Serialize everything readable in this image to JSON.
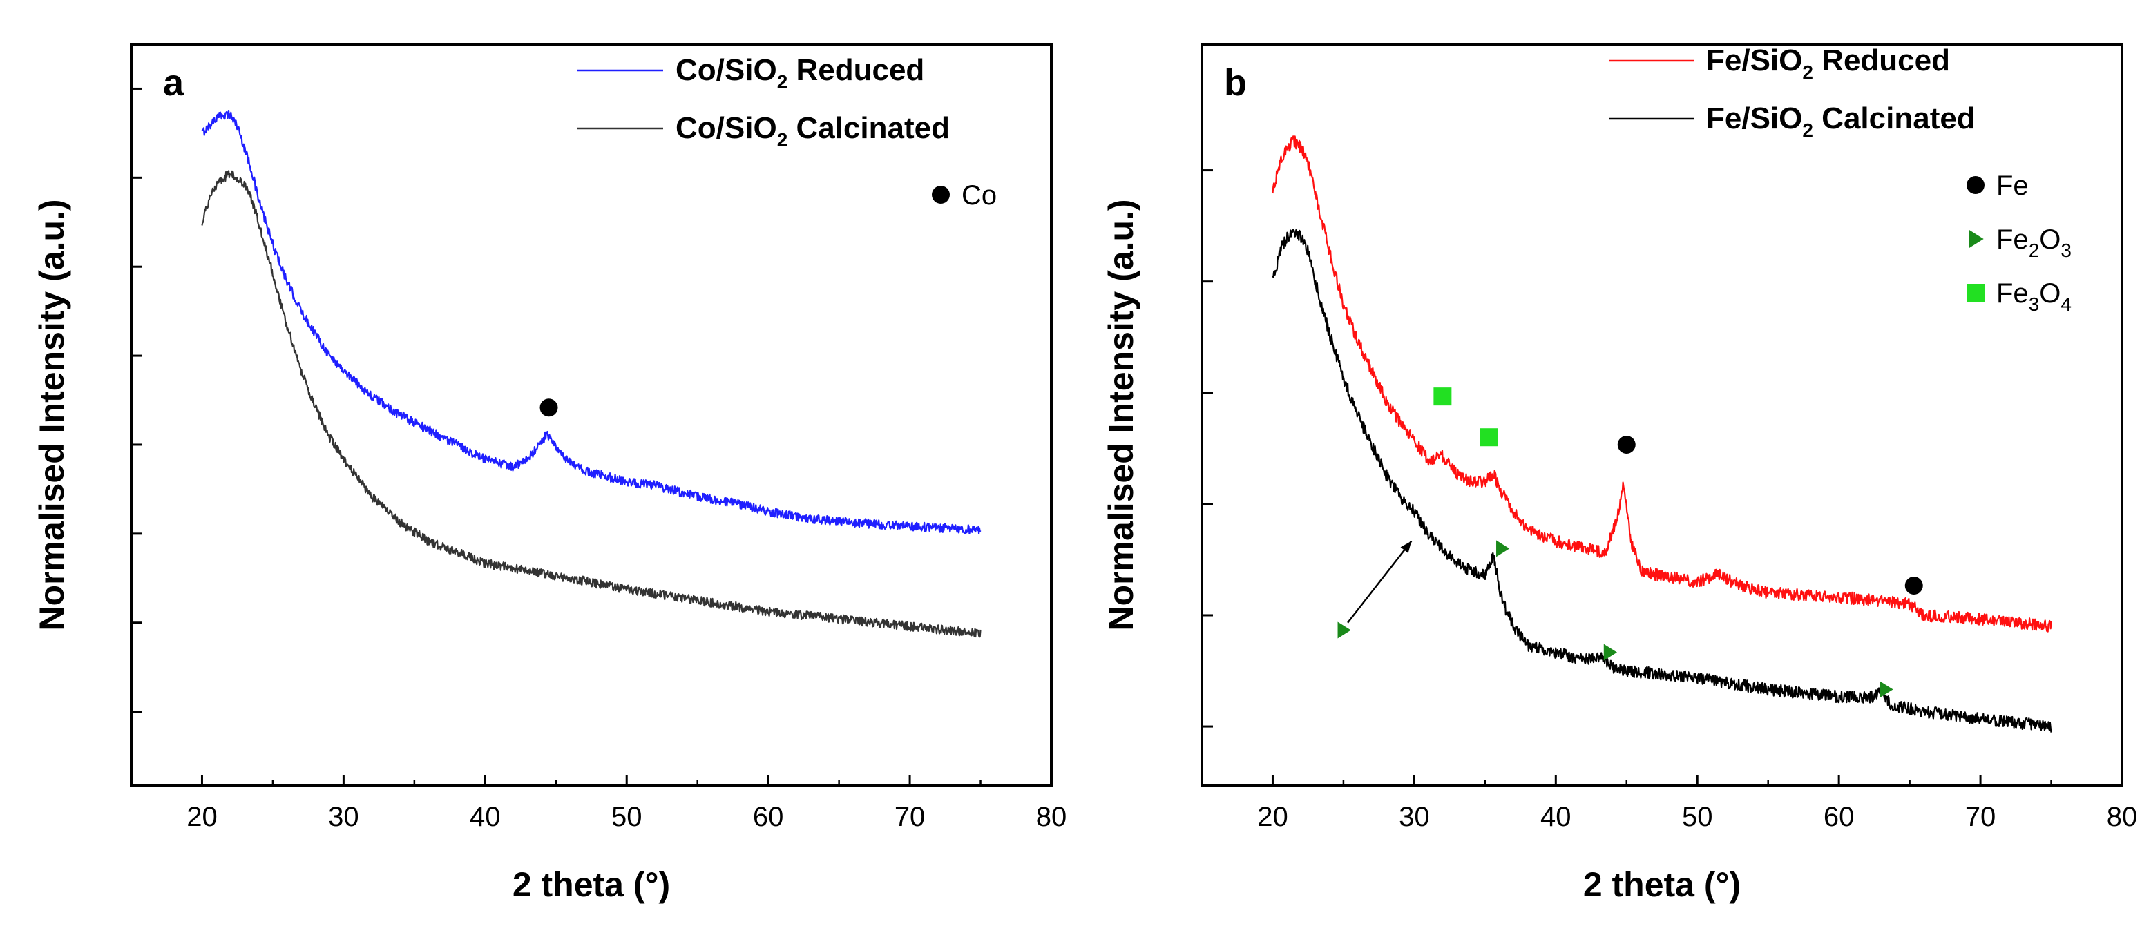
{
  "chart_data": [
    {
      "type": "line",
      "panel_label": "a",
      "xlabel": "2 theta (°)",
      "ylabel": "Normalised Intensity (a.u.)",
      "xlim": [
        15,
        80
      ],
      "ylim": [
        0,
        1
      ],
      "x_ticks": [
        20,
        30,
        40,
        50,
        60,
        70,
        80
      ],
      "y_ticks": [
        0.1,
        0.22,
        0.34,
        0.46,
        0.58,
        0.7,
        0.82,
        0.94
      ],
      "x_tick_labels": [
        "20",
        "30",
        "40",
        "50",
        "60",
        "70",
        "80"
      ],
      "y_tick_labels_visible": false,
      "series": [
        {
          "name": "Co/SiO₂ Reduced",
          "legend_main": "Co/SiO",
          "legend_sub": "2",
          "legend_rest": " Reduced",
          "color": "#1f1fff",
          "noise": 0.006,
          "x": [
            20,
            20.5,
            21.0,
            21.5,
            22.0,
            22.5,
            23.0,
            23.5,
            24.0,
            25.0,
            26.0,
            27.0,
            28.0,
            29.0,
            30.0,
            32.0,
            34.0,
            36.0,
            38.0,
            40.0,
            41.0,
            42.0,
            43.0,
            43.8,
            44.4,
            45.0,
            46.0,
            47.0,
            48.0,
            50.0,
            52.0,
            55.0,
            58.0,
            60.0,
            63.0,
            66.0,
            70.0,
            75.0
          ],
          "values": [
            0.88,
            0.89,
            0.9,
            0.905,
            0.905,
            0.89,
            0.86,
            0.83,
            0.79,
            0.73,
            0.68,
            0.64,
            0.61,
            0.58,
            0.56,
            0.525,
            0.5,
            0.48,
            0.46,
            0.44,
            0.435,
            0.43,
            0.44,
            0.46,
            0.475,
            0.455,
            0.435,
            0.425,
            0.42,
            0.41,
            0.405,
            0.39,
            0.38,
            0.37,
            0.36,
            0.355,
            0.35,
            0.345
          ]
        },
        {
          "name": "Co/SiO₂ Calcinated",
          "legend_main": "Co/SiO",
          "legend_sub": "2",
          "legend_rest": " Calcinated",
          "color": "#333333",
          "noise": 0.006,
          "x": [
            20,
            20.5,
            21.0,
            21.5,
            22.0,
            22.5,
            23.0,
            23.5,
            24.0,
            25.0,
            26.0,
            27.0,
            28.0,
            29.0,
            30.0,
            32.0,
            34.0,
            36.0,
            38.0,
            40.0,
            43.0,
            46.0,
            50.0,
            55.0,
            60.0,
            65.0,
            70.0,
            75.0
          ],
          "values": [
            0.76,
            0.79,
            0.81,
            0.82,
            0.825,
            0.82,
            0.81,
            0.79,
            0.76,
            0.69,
            0.62,
            0.56,
            0.51,
            0.47,
            0.44,
            0.39,
            0.355,
            0.33,
            0.315,
            0.3,
            0.29,
            0.28,
            0.265,
            0.25,
            0.235,
            0.225,
            0.215,
            0.205
          ]
        }
      ],
      "peak_markers": [
        {
          "phase": "Co",
          "shape": "circle",
          "color": "#000000",
          "x": 44.5,
          "y": 0.51
        }
      ],
      "marker_legend": [
        {
          "shape": "circle",
          "color": "#000000",
          "label": "Co",
          "sub": ""
        }
      ],
      "arrows": []
    },
    {
      "type": "line",
      "panel_label": "b",
      "xlabel": "2 theta (°)",
      "ylabel": "Normalised Intensity (a.u.)",
      "xlim": [
        15,
        80
      ],
      "ylim": [
        0,
        1
      ],
      "x_ticks": [
        20,
        30,
        40,
        50,
        60,
        70,
        80
      ],
      "y_ticks": [
        0.08,
        0.23,
        0.38,
        0.53,
        0.68,
        0.83
      ],
      "x_tick_labels": [
        "20",
        "30",
        "40",
        "50",
        "60",
        "70",
        "80"
      ],
      "y_tick_labels_visible": false,
      "series": [
        {
          "name": "Fe/SiO₂ Reduced",
          "legend_main": "Fe/SiO",
          "legend_sub": "2",
          "legend_rest": " Reduced",
          "color": "#ff1010",
          "noise": 0.008,
          "x": [
            20,
            20.5,
            21.0,
            21.5,
            22.0,
            22.5,
            23.0,
            24.0,
            25.0,
            26.0,
            27.0,
            28.0,
            29.0,
            30.0,
            31.0,
            32.0,
            33.0,
            34.0,
            35.0,
            35.6,
            36.2,
            37.0,
            38.0,
            40.0,
            42.0,
            43.5,
            44.3,
            44.8,
            45.3,
            46.0,
            47.0,
            50.0,
            51.5,
            53.0,
            55.0,
            60.0,
            65.0,
            66.0,
            70.0,
            75.0
          ],
          "values": [
            0.8,
            0.84,
            0.86,
            0.87,
            0.86,
            0.84,
            0.8,
            0.72,
            0.65,
            0.6,
            0.56,
            0.52,
            0.49,
            0.465,
            0.44,
            0.445,
            0.42,
            0.41,
            0.41,
            0.42,
            0.395,
            0.37,
            0.345,
            0.33,
            0.32,
            0.315,
            0.36,
            0.41,
            0.33,
            0.29,
            0.285,
            0.275,
            0.285,
            0.27,
            0.26,
            0.255,
            0.245,
            0.23,
            0.225,
            0.215
          ]
        },
        {
          "name": "Fe/SiO₂ Calcinated",
          "legend_main": "Fe/SiO",
          "legend_sub": "2",
          "legend_rest": " Calcinated",
          "color": "#000000",
          "noise": 0.008,
          "x": [
            20,
            20.5,
            21.0,
            21.5,
            22.0,
            22.5,
            23.0,
            24.0,
            25.0,
            26.0,
            27.0,
            28.0,
            29.0,
            30.0,
            31.0,
            32.0,
            33.0,
            34.0,
            35.0,
            35.6,
            36.2,
            37.0,
            38.0,
            40.0,
            42.0,
            43.3,
            44.0,
            45.0,
            48.0,
            50.0,
            55.0,
            60.0,
            62.5,
            63.0,
            63.6,
            66.0,
            70.0,
            75.0
          ],
          "values": [
            0.68,
            0.72,
            0.74,
            0.745,
            0.74,
            0.72,
            0.68,
            0.61,
            0.55,
            0.5,
            0.46,
            0.42,
            0.39,
            0.37,
            0.34,
            0.32,
            0.3,
            0.29,
            0.285,
            0.31,
            0.25,
            0.215,
            0.19,
            0.18,
            0.17,
            0.175,
            0.16,
            0.155,
            0.15,
            0.145,
            0.13,
            0.12,
            0.12,
            0.13,
            0.11,
            0.1,
            0.09,
            0.08
          ]
        }
      ],
      "peak_markers": [
        {
          "phase": "Fe3O4",
          "shape": "square",
          "color": "#22e022",
          "x": 32.0,
          "y": 0.525
        },
        {
          "phase": "Fe3O4",
          "shape": "square",
          "color": "#22e022",
          "x": 35.3,
          "y": 0.47
        },
        {
          "phase": "Fe",
          "shape": "circle",
          "color": "#000000",
          "x": 45.0,
          "y": 0.46
        },
        {
          "phase": "Fe",
          "shape": "circle",
          "color": "#000000",
          "x": 65.3,
          "y": 0.27
        },
        {
          "phase": "Fe2O3",
          "shape": "triangle",
          "color": "#1a8a1a",
          "x": 36.2,
          "y": 0.32
        },
        {
          "phase": "Fe2O3",
          "shape": "triangle",
          "color": "#1a8a1a",
          "x": 25.0,
          "y": 0.21
        },
        {
          "phase": "Fe2O3",
          "shape": "triangle",
          "color": "#1a8a1a",
          "x": 43.8,
          "y": 0.18
        },
        {
          "phase": "Fe2O3",
          "shape": "triangle",
          "color": "#1a8a1a",
          "x": 63.3,
          "y": 0.13
        }
      ],
      "marker_legend": [
        {
          "shape": "circle",
          "color": "#000000",
          "label": "Fe",
          "sub": ""
        },
        {
          "shape": "triangle",
          "color": "#1a8a1a",
          "label": "Fe",
          "sub": "2",
          "mid": "O",
          "sub2": "3"
        },
        {
          "shape": "square",
          "color": "#22e022",
          "label": "Fe",
          "sub": "3",
          "mid": "O",
          "sub2": "4"
        }
      ],
      "arrows": [
        {
          "from_x": 25.3,
          "from_y": 0.22,
          "to_x": 29.8,
          "to_y": 0.33,
          "color": "#000000"
        }
      ]
    }
  ]
}
